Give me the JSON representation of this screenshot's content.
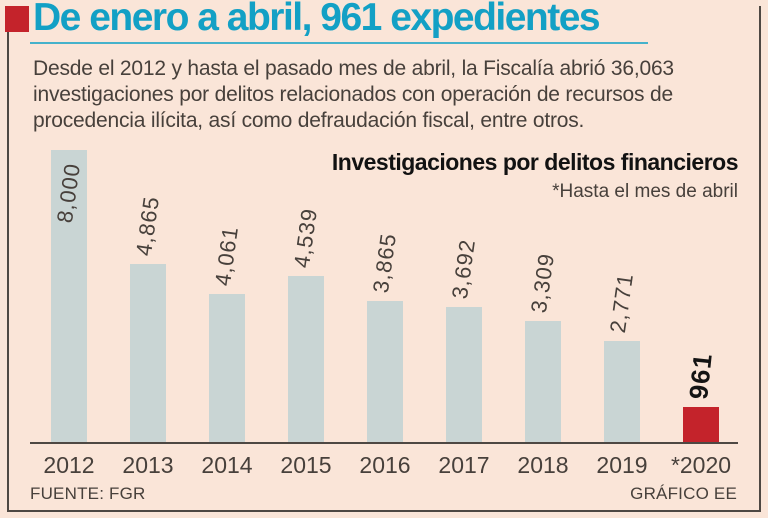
{
  "header": {
    "title": "De enero a abril, 961 expedientes",
    "subtitle_lines": [
      "Desde el 2012 y hasta el pasado mes de abril, la Fiscalía abrió 36,063",
      "investigaciones por delitos relacionados con operación de recursos de",
      "procedencia ilícita, así como defraudación fiscal, entre otros."
    ]
  },
  "footer": {
    "source": "FUENTE: FGR",
    "credit": "GRÁFICO EE"
  },
  "colors": {
    "accent_red": "#C4232B",
    "accent_cyan": "#13A0C5",
    "bar_fill": "#C9D5D4",
    "background": "#FAE5D8",
    "text": "#47403B",
    "border": "#4E4843"
  },
  "chart_data": {
    "type": "bar",
    "title": "Investigaciones por delitos financieros",
    "note": "*Hasta el mes de abril",
    "categories": [
      "2012",
      "2013",
      "2014",
      "2015",
      "2016",
      "2017",
      "2018",
      "2019",
      "*2020"
    ],
    "values": [
      8000,
      4865,
      4061,
      4539,
      3865,
      3692,
      3309,
      2771,
      961
    ],
    "labels": [
      "8,000",
      "4,865",
      "4,061",
      "4,539",
      "3,865",
      "3,692",
      "3,309",
      "2,771",
      "961"
    ],
    "highlight_index": 8,
    "xlabel": "",
    "ylabel": "",
    "ylim": [
      0,
      8000
    ],
    "grid": false,
    "legend": false,
    "value_label_rotation": "vertical-bottom-to-top"
  }
}
